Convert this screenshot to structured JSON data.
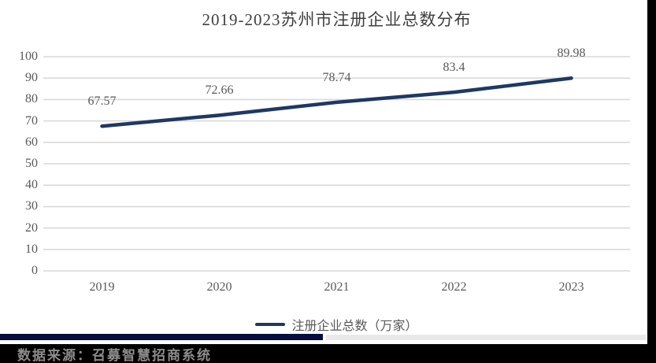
{
  "chart_data": {
    "type": "line",
    "title": "2019-2023苏州市注册企业总数分布",
    "categories": [
      "2019",
      "2020",
      "2021",
      "2022",
      "2023"
    ],
    "series": [
      {
        "name": "注册企业总数（万家）",
        "values": [
          67.57,
          72.66,
          78.74,
          83.4,
          89.98
        ],
        "value_labels": [
          "67.57",
          "72.66",
          "78.74",
          "83.4",
          "89.98"
        ],
        "color": "#1f3864"
      }
    ],
    "xlabel": "",
    "ylabel": "",
    "ylim": [
      0,
      100
    ],
    "yticks": [
      "0",
      "10",
      "20",
      "30",
      "40",
      "50",
      "60",
      "70",
      "80",
      "90",
      "100"
    ],
    "grid": true,
    "legend_position": "bottom-center",
    "line_width": 4.5
  },
  "legend": {
    "label": "注册企业总数（万家）"
  },
  "footer": {
    "source_text": "数据来源：召募智慧招商系统"
  },
  "colors": {
    "line": "#1f3864",
    "gridline": "#d9d9d9",
    "axis_text": "#595959",
    "title_text": "#404040",
    "scrollbar_thumb": "#050e3f",
    "scrollbar_track": "#e9e9e9",
    "side_strip": "#000000",
    "footer_bg": "#000000",
    "footer_text": "#8c8c8c"
  }
}
